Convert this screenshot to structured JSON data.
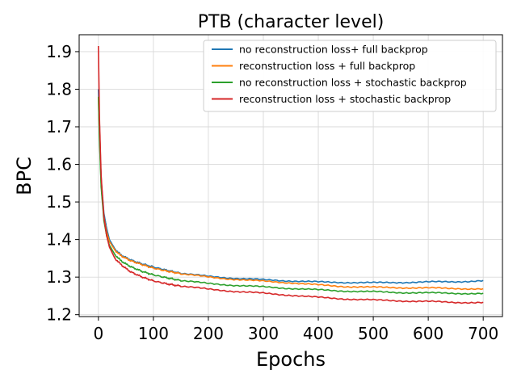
{
  "chart_data": {
    "type": "line",
    "title": "PTB (character level)",
    "xlabel": "Epochs",
    "ylabel": "BPC",
    "xlim": [
      -35,
      735
    ],
    "ylim": [
      1.195,
      1.945
    ],
    "xticks": [
      0,
      100,
      200,
      300,
      400,
      500,
      600,
      700
    ],
    "xtick_labels": [
      "0",
      "100",
      "200",
      "300",
      "400",
      "500",
      "600",
      "700"
    ],
    "yticks": [
      1.2,
      1.3,
      1.4,
      1.5,
      1.6,
      1.7,
      1.8,
      1.9
    ],
    "ytick_labels": [
      "1.2",
      "1.3",
      "1.4",
      "1.5",
      "1.6",
      "1.7",
      "1.8",
      "1.9"
    ],
    "grid": true,
    "legend_position": "top-right",
    "series": [
      {
        "name": "no reconstruction loss+ full backprop",
        "color": "#1f77b4",
        "x": [
          0,
          2,
          5,
          10,
          15,
          20,
          30,
          40,
          50,
          60,
          80,
          100,
          125,
          150,
          200,
          250,
          300,
          350,
          400,
          450,
          500,
          550,
          600,
          650,
          700
        ],
        "y": [
          1.8,
          1.68,
          1.56,
          1.47,
          1.43,
          1.4,
          1.375,
          1.36,
          1.352,
          1.345,
          1.335,
          1.327,
          1.318,
          1.31,
          1.302,
          1.297,
          1.293,
          1.29,
          1.287,
          1.286,
          1.285,
          1.286,
          1.287,
          1.288,
          1.29
        ]
      },
      {
        "name": "reconstruction loss + full backprop",
        "color": "#ff7f0e",
        "x": [
          0,
          2,
          5,
          10,
          15,
          20,
          30,
          40,
          50,
          60,
          80,
          100,
          125,
          150,
          200,
          250,
          300,
          350,
          400,
          450,
          500,
          550,
          600,
          650,
          700
        ],
        "y": [
          1.78,
          1.67,
          1.55,
          1.46,
          1.42,
          1.395,
          1.372,
          1.358,
          1.35,
          1.343,
          1.333,
          1.324,
          1.316,
          1.309,
          1.3,
          1.294,
          1.289,
          1.285,
          1.279,
          1.275,
          1.273,
          1.272,
          1.271,
          1.27,
          1.268
        ]
      },
      {
        "name": "no reconstruction loss + stochastic backprop",
        "color": "#2ca02c",
        "x": [
          0,
          2,
          5,
          10,
          15,
          20,
          30,
          40,
          50,
          60,
          80,
          100,
          125,
          150,
          200,
          250,
          300,
          350,
          400,
          450,
          500,
          550,
          600,
          650,
          700
        ],
        "y": [
          1.78,
          1.66,
          1.54,
          1.45,
          1.41,
          1.385,
          1.36,
          1.345,
          1.335,
          1.327,
          1.315,
          1.306,
          1.298,
          1.291,
          1.283,
          1.278,
          1.274,
          1.27,
          1.266,
          1.263,
          1.261,
          1.259,
          1.258,
          1.257,
          1.256
        ]
      },
      {
        "name": "reconstruction loss + stochastic backprop",
        "color": "#d62728",
        "x": [
          0,
          2,
          5,
          10,
          15,
          20,
          30,
          40,
          50,
          60,
          80,
          100,
          125,
          150,
          200,
          250,
          300,
          350,
          400,
          450,
          500,
          550,
          600,
          650,
          700
        ],
        "y": [
          1.915,
          1.72,
          1.57,
          1.46,
          1.41,
          1.38,
          1.35,
          1.335,
          1.323,
          1.313,
          1.3,
          1.29,
          1.282,
          1.276,
          1.268,
          1.262,
          1.257,
          1.252,
          1.246,
          1.242,
          1.239,
          1.237,
          1.235,
          1.233,
          1.232
        ]
      }
    ]
  }
}
